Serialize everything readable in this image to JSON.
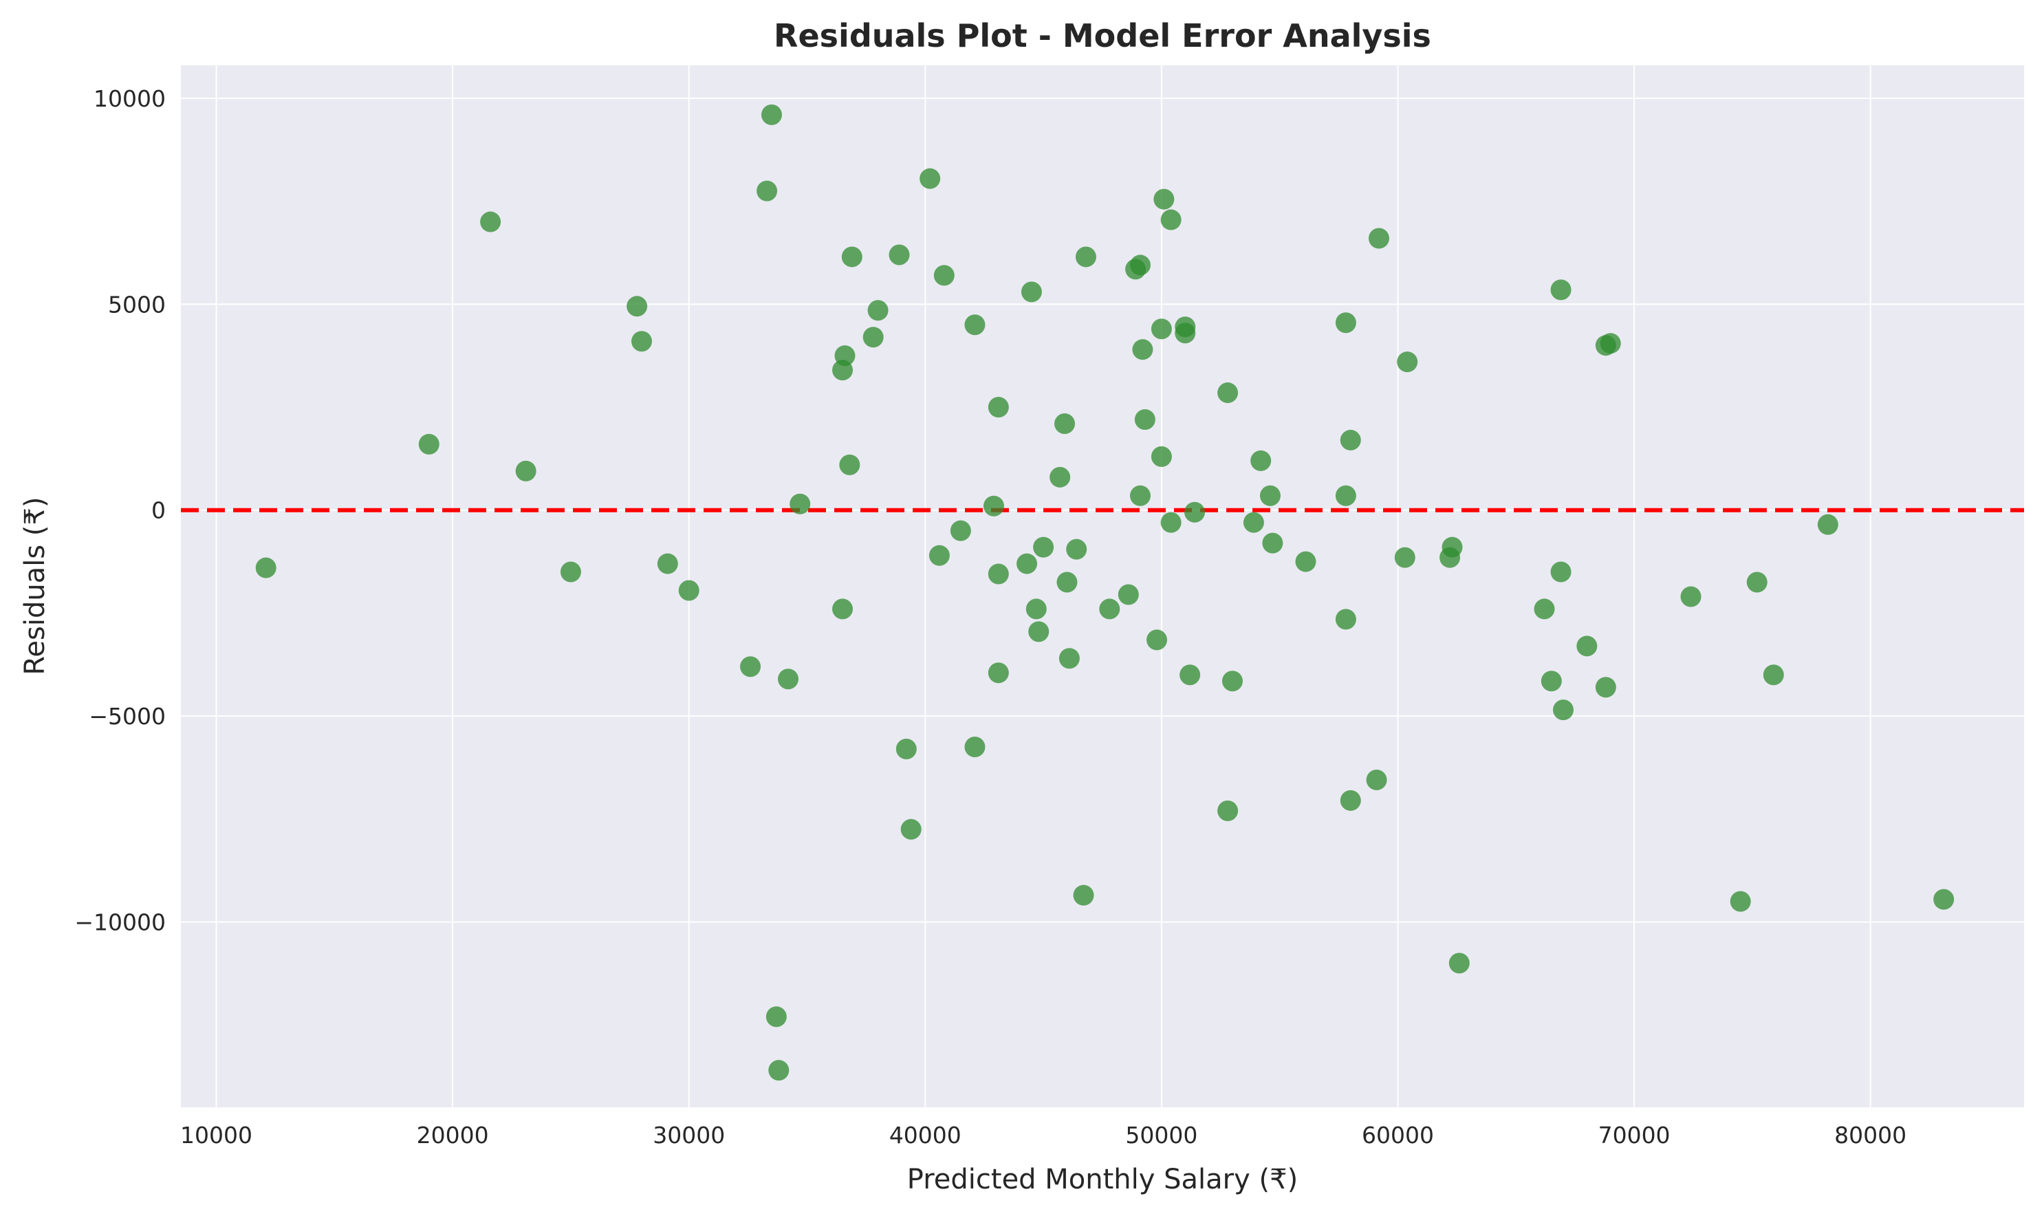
{
  "chart_data": {
    "type": "scatter",
    "title": "Residuals Plot - Model Error Analysis",
    "xlabel": "Predicted Monthly Salary (₹)",
    "ylabel": "Residuals (₹)",
    "xlim": [
      8500,
      86500
    ],
    "ylim": [
      -14500,
      10800
    ],
    "xticks": [
      10000,
      20000,
      30000,
      40000,
      50000,
      60000,
      70000,
      80000
    ],
    "yticks": [
      -10000,
      -5000,
      0,
      5000,
      10000
    ],
    "xtick_labels": [
      "10000",
      "20000",
      "30000",
      "40000",
      "50000",
      "60000",
      "70000",
      "80000"
    ],
    "ytick_labels": [
      "−10000",
      "−5000",
      "0",
      "5000",
      "10000"
    ],
    "grid": true,
    "reference_line": {
      "y": 0,
      "style": "dashed",
      "color": "#ff0000"
    },
    "colors": {
      "points": "#2e8b2e",
      "background": "#eaeaf2",
      "grid": "#ffffff"
    },
    "points": [
      [
        12100,
        -1400
      ],
      [
        19000,
        1600
      ],
      [
        21600,
        7000
      ],
      [
        23100,
        950
      ],
      [
        25000,
        -1500
      ],
      [
        27800,
        4950
      ],
      [
        28000,
        4100
      ],
      [
        29100,
        -1300
      ],
      [
        30000,
        -1950
      ],
      [
        32600,
        -3800
      ],
      [
        33300,
        7750
      ],
      [
        33500,
        9600
      ],
      [
        33700,
        -12300
      ],
      [
        33800,
        -13600
      ],
      [
        34200,
        -4100
      ],
      [
        34700,
        150
      ],
      [
        36500,
        3400
      ],
      [
        36500,
        -2400
      ],
      [
        36600,
        3750
      ],
      [
        36800,
        1100
      ],
      [
        36900,
        6150
      ],
      [
        37800,
        4200
      ],
      [
        38000,
        4850
      ],
      [
        38900,
        6200
      ],
      [
        39200,
        -5800
      ],
      [
        39400,
        -7750
      ],
      [
        40200,
        8050
      ],
      [
        40600,
        -1100
      ],
      [
        40800,
        5700
      ],
      [
        41500,
        -500
      ],
      [
        42100,
        4500
      ],
      [
        42100,
        -5750
      ],
      [
        42900,
        100
      ],
      [
        43100,
        -1550
      ],
      [
        43100,
        2500
      ],
      [
        43100,
        -3950
      ],
      [
        44300,
        -1300
      ],
      [
        44500,
        5300
      ],
      [
        44700,
        -2400
      ],
      [
        44800,
        -2950
      ],
      [
        45000,
        -900
      ],
      [
        45700,
        800
      ],
      [
        45900,
        2100
      ],
      [
        46000,
        -1750
      ],
      [
        46100,
        -3600
      ],
      [
        46400,
        -950
      ],
      [
        46800,
        6150
      ],
      [
        46700,
        -9350
      ],
      [
        47800,
        -2400
      ],
      [
        48600,
        -2050
      ],
      [
        48900,
        5850
      ],
      [
        49100,
        5950
      ],
      [
        49100,
        350
      ],
      [
        49200,
        3900
      ],
      [
        49300,
        2200
      ],
      [
        49800,
        -3150
      ],
      [
        50000,
        4400
      ],
      [
        50000,
        1300
      ],
      [
        50100,
        7550
      ],
      [
        50400,
        7050
      ],
      [
        50400,
        -300
      ],
      [
        51000,
        4450
      ],
      [
        51000,
        4300
      ],
      [
        51200,
        -4000
      ],
      [
        51400,
        -50
      ],
      [
        52800,
        2850
      ],
      [
        52800,
        -7300
      ],
      [
        53000,
        -4150
      ],
      [
        53900,
        -300
      ],
      [
        54200,
        1200
      ],
      [
        54600,
        350
      ],
      [
        54700,
        -800
      ],
      [
        56100,
        -1250
      ],
      [
        57800,
        4550
      ],
      [
        57800,
        350
      ],
      [
        57800,
        -2650
      ],
      [
        58000,
        1700
      ],
      [
        58000,
        -7050
      ],
      [
        59100,
        -6550
      ],
      [
        59200,
        6600
      ],
      [
        60300,
        -1150
      ],
      [
        60400,
        3600
      ],
      [
        62200,
        -1150
      ],
      [
        62300,
        -900
      ],
      [
        62600,
        -11000
      ],
      [
        66200,
        -2400
      ],
      [
        66500,
        -4150
      ],
      [
        66900,
        5350
      ],
      [
        66900,
        -1500
      ],
      [
        67000,
        -4850
      ],
      [
        68000,
        -3300
      ],
      [
        68800,
        -4300
      ],
      [
        68800,
        4000
      ],
      [
        69000,
        4050
      ],
      [
        72400,
        -2100
      ],
      [
        74500,
        -9500
      ],
      [
        75200,
        -1750
      ],
      [
        75900,
        -4000
      ],
      [
        78200,
        -350
      ],
      [
        83100,
        -9450
      ]
    ]
  }
}
